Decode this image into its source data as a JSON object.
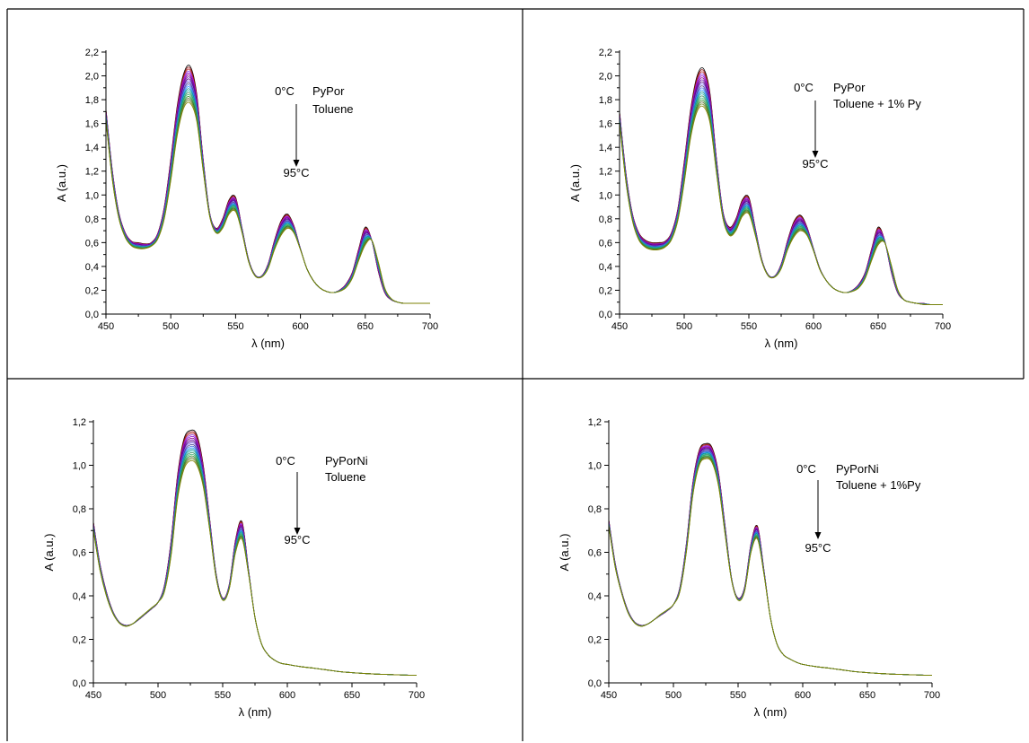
{
  "chart_data": [
    {
      "type": "line",
      "compound": "PyPor",
      "solvent": "Toluene",
      "temp_start": "0°C",
      "temp_end": "95°C",
      "xlabel": "λ (nm)",
      "ylabel": "A (a.u.)",
      "xlim": [
        450,
        700
      ],
      "ylim": [
        0,
        2.2
      ],
      "xticks": [
        450,
        500,
        550,
        600,
        650,
        700
      ],
      "yticks": [
        "0,0",
        "0,2",
        "0,4",
        "0,6",
        "0,8",
        "1,0",
        "1,2",
        "1,4",
        "1,6",
        "1,8",
        "2,0",
        "2,2"
      ],
      "series_count": 20,
      "spectrum_0C": {
        "x": [
          450,
          455,
          460,
          465,
          470,
          475,
          480,
          485,
          490,
          495,
          500,
          505,
          510,
          515,
          520,
          525,
          530,
          535,
          540,
          545,
          550,
          555,
          560,
          565,
          570,
          575,
          580,
          585,
          590,
          595,
          600,
          605,
          610,
          615,
          620,
          625,
          630,
          635,
          640,
          645,
          650,
          655,
          660,
          665,
          670,
          675,
          680,
          685,
          690,
          695,
          700
        ],
        "y": [
          1.72,
          1.2,
          0.85,
          0.68,
          0.61,
          0.6,
          0.59,
          0.6,
          0.68,
          0.9,
          1.3,
          1.75,
          2.02,
          2.08,
          1.85,
          1.3,
          0.85,
          0.72,
          0.8,
          0.96,
          0.98,
          0.72,
          0.46,
          0.33,
          0.32,
          0.42,
          0.62,
          0.78,
          0.84,
          0.74,
          0.55,
          0.38,
          0.28,
          0.22,
          0.19,
          0.18,
          0.2,
          0.25,
          0.35,
          0.55,
          0.73,
          0.62,
          0.36,
          0.18,
          0.12,
          0.1,
          0.09,
          0.09,
          0.09,
          0.09,
          0.09
        ]
      },
      "spectrum_95C": {
        "x": [
          450,
          455,
          460,
          465,
          470,
          475,
          480,
          485,
          490,
          495,
          500,
          505,
          510,
          515,
          520,
          525,
          530,
          535,
          540,
          545,
          550,
          555,
          560,
          565,
          570,
          575,
          580,
          585,
          590,
          595,
          600,
          605,
          610,
          615,
          620,
          625,
          630,
          635,
          640,
          645,
          650,
          655,
          660,
          665,
          670,
          675,
          680,
          685,
          690,
          695,
          700
        ],
        "y": [
          1.62,
          1.12,
          0.8,
          0.64,
          0.57,
          0.55,
          0.55,
          0.57,
          0.63,
          0.8,
          1.12,
          1.5,
          1.73,
          1.77,
          1.62,
          1.2,
          0.82,
          0.68,
          0.72,
          0.84,
          0.86,
          0.68,
          0.44,
          0.32,
          0.31,
          0.38,
          0.54,
          0.66,
          0.72,
          0.68,
          0.54,
          0.38,
          0.28,
          0.22,
          0.19,
          0.18,
          0.19,
          0.22,
          0.3,
          0.45,
          0.58,
          0.62,
          0.44,
          0.22,
          0.13,
          0.1,
          0.09,
          0.09,
          0.09,
          0.09,
          0.09
        ]
      }
    },
    {
      "type": "line",
      "compound": "PyPor",
      "solvent": "Toluene + 1% Py",
      "temp_start": "0°C",
      "temp_end": "95°C",
      "xlabel": "λ (nm)",
      "ylabel": "A (a.u.)",
      "xlim": [
        450,
        700
      ],
      "ylim": [
        0,
        2.2
      ],
      "xticks": [
        450,
        500,
        550,
        600,
        650,
        700
      ],
      "yticks": [
        "0,0",
        "0,2",
        "0,4",
        "0,6",
        "0,8",
        "1,0",
        "1,2",
        "1,4",
        "1,6",
        "1,8",
        "2,0",
        "2,2"
      ],
      "series_count": 20,
      "spectrum_0C": {
        "x": [
          450,
          455,
          460,
          465,
          470,
          475,
          480,
          485,
          490,
          495,
          500,
          505,
          510,
          515,
          520,
          525,
          530,
          535,
          540,
          545,
          550,
          555,
          560,
          565,
          570,
          575,
          580,
          585,
          590,
          595,
          600,
          605,
          610,
          615,
          620,
          625,
          630,
          635,
          640,
          645,
          650,
          655,
          660,
          665,
          670,
          675,
          680,
          685,
          690,
          695,
          700
        ],
        "y": [
          1.7,
          1.18,
          0.84,
          0.68,
          0.62,
          0.6,
          0.6,
          0.61,
          0.68,
          0.88,
          1.28,
          1.72,
          2.0,
          2.06,
          1.85,
          1.3,
          0.86,
          0.73,
          0.8,
          0.96,
          0.98,
          0.72,
          0.46,
          0.33,
          0.32,
          0.42,
          0.62,
          0.78,
          0.83,
          0.73,
          0.55,
          0.38,
          0.28,
          0.22,
          0.19,
          0.18,
          0.2,
          0.25,
          0.35,
          0.55,
          0.73,
          0.62,
          0.36,
          0.18,
          0.12,
          0.1,
          0.09,
          0.09,
          0.08,
          0.08,
          0.08
        ]
      },
      "spectrum_95C": {
        "x": [
          450,
          455,
          460,
          465,
          470,
          475,
          480,
          485,
          490,
          495,
          500,
          505,
          510,
          515,
          520,
          525,
          530,
          535,
          540,
          545,
          550,
          555,
          560,
          565,
          570,
          575,
          580,
          585,
          590,
          595,
          600,
          605,
          610,
          615,
          620,
          625,
          630,
          635,
          640,
          645,
          650,
          655,
          660,
          665,
          670,
          675,
          680,
          685,
          690,
          695,
          700
        ],
        "y": [
          1.6,
          1.1,
          0.78,
          0.62,
          0.56,
          0.54,
          0.54,
          0.56,
          0.62,
          0.78,
          1.1,
          1.48,
          1.7,
          1.74,
          1.6,
          1.18,
          0.8,
          0.66,
          0.7,
          0.82,
          0.84,
          0.66,
          0.44,
          0.32,
          0.31,
          0.38,
          0.54,
          0.65,
          0.7,
          0.66,
          0.53,
          0.37,
          0.28,
          0.22,
          0.19,
          0.18,
          0.19,
          0.22,
          0.3,
          0.45,
          0.58,
          0.6,
          0.42,
          0.21,
          0.12,
          0.1,
          0.09,
          0.08,
          0.08,
          0.08,
          0.08
        ]
      }
    },
    {
      "type": "line",
      "compound": "PyPorNi",
      "solvent": "Toluene",
      "temp_start": "0°C",
      "temp_end": "95°C",
      "xlabel": "λ (nm)",
      "ylabel": "A (a.u.)",
      "xlim": [
        450,
        700
      ],
      "ylim": [
        0,
        1.2
      ],
      "xticks": [
        450,
        500,
        550,
        600,
        650,
        700
      ],
      "yticks": [
        "0,0",
        "0,2",
        "0,4",
        "0,6",
        "0,8",
        "1,0",
        "1,2"
      ],
      "series_count": 20,
      "spectrum_0C": {
        "x": [
          450,
          455,
          460,
          465,
          470,
          475,
          480,
          485,
          490,
          495,
          500,
          505,
          510,
          515,
          520,
          525,
          530,
          535,
          540,
          545,
          550,
          555,
          560,
          565,
          570,
          575,
          580,
          585,
          590,
          595,
          600,
          610,
          620,
          630,
          640,
          650,
          660,
          670,
          680,
          690,
          700
        ],
        "y": [
          0.74,
          0.55,
          0.42,
          0.33,
          0.28,
          0.265,
          0.27,
          0.29,
          0.315,
          0.34,
          0.37,
          0.45,
          0.65,
          0.95,
          1.12,
          1.16,
          1.14,
          1.0,
          0.75,
          0.5,
          0.39,
          0.45,
          0.66,
          0.74,
          0.52,
          0.3,
          0.18,
          0.13,
          0.105,
          0.09,
          0.085,
          0.075,
          0.068,
          0.06,
          0.052,
          0.047,
          0.043,
          0.04,
          0.038,
          0.036,
          0.035
        ]
      },
      "spectrum_95C": {
        "x": [
          450,
          455,
          460,
          465,
          470,
          475,
          480,
          485,
          490,
          495,
          500,
          505,
          510,
          515,
          520,
          525,
          530,
          535,
          540,
          545,
          550,
          555,
          560,
          565,
          570,
          575,
          580,
          585,
          590,
          595,
          600,
          610,
          620,
          630,
          640,
          650,
          660,
          670,
          680,
          690,
          700
        ],
        "y": [
          0.7,
          0.52,
          0.4,
          0.32,
          0.275,
          0.26,
          0.27,
          0.295,
          0.32,
          0.345,
          0.37,
          0.42,
          0.58,
          0.84,
          0.98,
          1.02,
          1.0,
          0.9,
          0.7,
          0.48,
          0.38,
          0.43,
          0.6,
          0.66,
          0.5,
          0.3,
          0.18,
          0.13,
          0.105,
          0.09,
          0.085,
          0.075,
          0.068,
          0.06,
          0.052,
          0.047,
          0.043,
          0.04,
          0.038,
          0.036,
          0.035
        ]
      }
    },
    {
      "type": "line",
      "compound": "PyPorNi",
      "solvent": "Toluene + 1%Py",
      "temp_start": "0°C",
      "temp_end": "95°C",
      "xlabel": "λ (nm)",
      "ylabel": "A (a.u.)",
      "xlim": [
        450,
        700
      ],
      "ylim": [
        0,
        1.2
      ],
      "xticks": [
        450,
        500,
        550,
        600,
        650,
        700
      ],
      "yticks": [
        "0,0",
        "0,2",
        "0,4",
        "0,6",
        "0,8",
        "1,0",
        "1,2"
      ],
      "series_count": 20,
      "spectrum_0C": {
        "x": [
          450,
          455,
          460,
          465,
          470,
          475,
          480,
          485,
          490,
          495,
          500,
          505,
          510,
          515,
          520,
          525,
          530,
          535,
          540,
          545,
          550,
          555,
          560,
          565,
          570,
          575,
          580,
          585,
          590,
          595,
          600,
          610,
          620,
          630,
          640,
          650,
          660,
          670,
          680,
          690,
          700
        ],
        "y": [
          0.75,
          0.55,
          0.42,
          0.33,
          0.28,
          0.265,
          0.27,
          0.29,
          0.31,
          0.33,
          0.36,
          0.44,
          0.64,
          0.92,
          1.07,
          1.1,
          1.08,
          0.96,
          0.72,
          0.48,
          0.39,
          0.44,
          0.64,
          0.72,
          0.52,
          0.3,
          0.18,
          0.13,
          0.11,
          0.095,
          0.085,
          0.075,
          0.068,
          0.06,
          0.052,
          0.047,
          0.043,
          0.04,
          0.038,
          0.036,
          0.035
        ]
      },
      "spectrum_95C": {
        "x": [
          450,
          455,
          460,
          465,
          470,
          475,
          480,
          485,
          490,
          495,
          500,
          505,
          510,
          515,
          520,
          525,
          530,
          535,
          540,
          545,
          550,
          555,
          560,
          565,
          570,
          575,
          580,
          585,
          590,
          595,
          600,
          610,
          620,
          630,
          640,
          650,
          660,
          670,
          680,
          690,
          700
        ],
        "y": [
          0.72,
          0.53,
          0.41,
          0.32,
          0.275,
          0.26,
          0.27,
          0.29,
          0.315,
          0.335,
          0.36,
          0.42,
          0.6,
          0.86,
          1.0,
          1.03,
          1.01,
          0.9,
          0.68,
          0.47,
          0.38,
          0.42,
          0.6,
          0.66,
          0.5,
          0.3,
          0.18,
          0.13,
          0.11,
          0.095,
          0.085,
          0.075,
          0.068,
          0.06,
          0.052,
          0.047,
          0.043,
          0.04,
          0.038,
          0.036,
          0.035
        ]
      }
    }
  ],
  "series_colors": [
    "#000000",
    "#8b0000",
    "#b22222",
    "#8a2be2",
    "#9400d3",
    "#800080",
    "#6a0dad",
    "#4b0082",
    "#7b68ee",
    "#483d8b",
    "#4169e1",
    "#1e90ff",
    "#008b8b",
    "#20b2aa",
    "#2e8b57",
    "#3cb371",
    "#228b22",
    "#556b2f",
    "#6b8e23",
    "#808000"
  ]
}
